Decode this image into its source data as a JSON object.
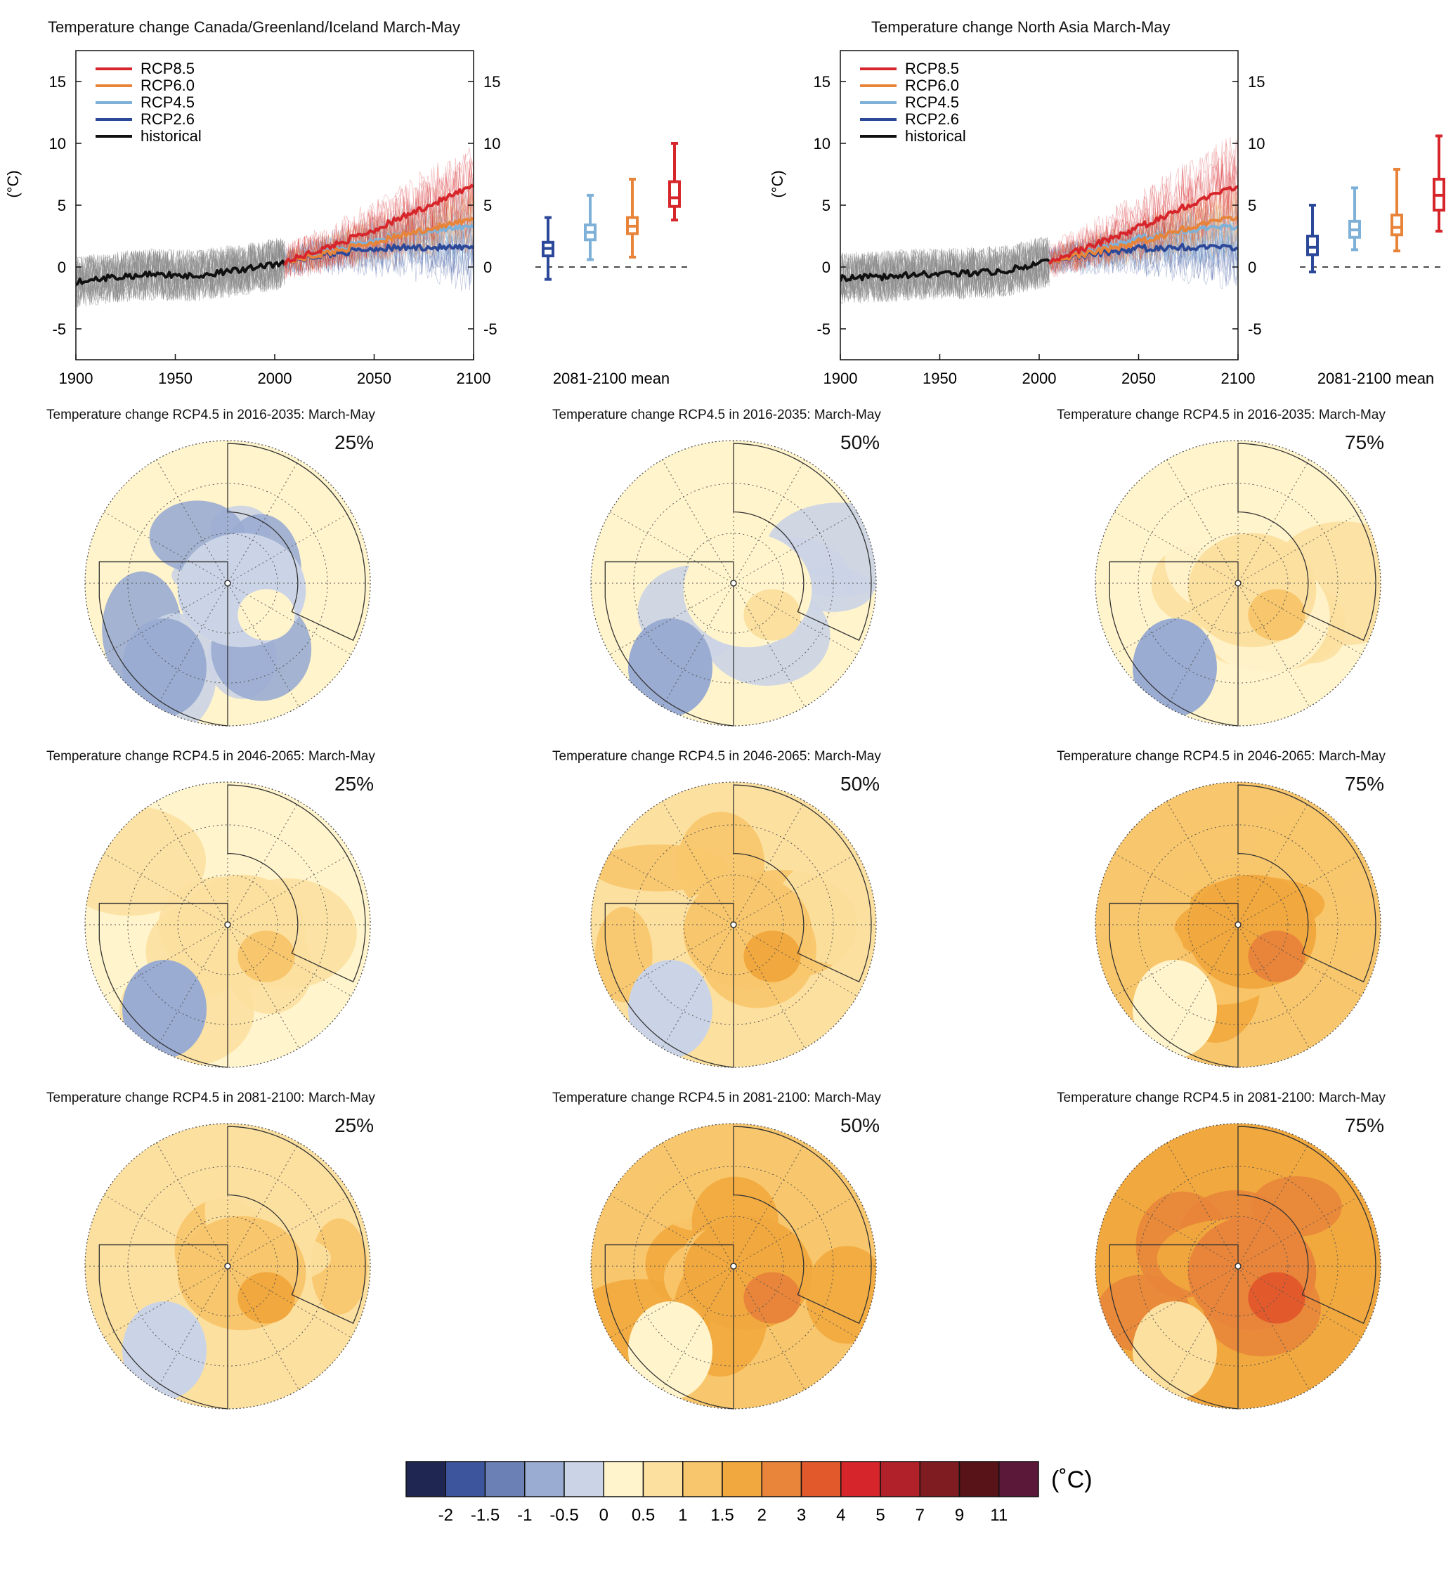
{
  "colors": {
    "rcp85": "#d7262b",
    "rcp60": "#e8843a",
    "rcp45": "#7fb1d8",
    "rcp26": "#2c4898",
    "historical": "#111111",
    "model_gray": "#8a8a8a"
  },
  "chart_data": [
    {
      "type": "line",
      "title": "Temperature change Canada/Greenland/Iceland March-May",
      "ylabel": "(°C)",
      "xlabel": "",
      "x_ticks": [
        "1900",
        "1950",
        "2000",
        "2050",
        "2100"
      ],
      "y_ticks": [
        "-5",
        "0",
        "5",
        "10",
        "15"
      ],
      "xlim": [
        1900,
        2100
      ],
      "ylim": [
        -7.5,
        17.5
      ],
      "legend": {
        "position": "top-left",
        "entries": [
          "RCP8.5",
          "RCP6.0",
          "RCP4.5",
          "RCP2.6",
          "historical"
        ]
      },
      "series": [
        {
          "name": "historical",
          "x": [
            1900,
            1920,
            1940,
            1960,
            1980,
            2000,
            2005
          ],
          "values": [
            -1.2,
            -0.8,
            -0.6,
            -0.7,
            -0.3,
            0.2,
            0.4
          ]
        },
        {
          "name": "RCP2.6",
          "x": [
            2005,
            2025,
            2050,
            2075,
            2100
          ],
          "values": [
            0.4,
            1.0,
            1.5,
            1.6,
            1.5
          ]
        },
        {
          "name": "RCP4.5",
          "x": [
            2005,
            2025,
            2050,
            2075,
            2100
          ],
          "values": [
            0.4,
            1.2,
            2.2,
            2.9,
            3.2
          ]
        },
        {
          "name": "RCP6.0",
          "x": [
            2005,
            2025,
            2050,
            2075,
            2100
          ],
          "values": [
            0.4,
            1.1,
            2.0,
            3.0,
            3.8
          ]
        },
        {
          "name": "RCP8.5",
          "x": [
            2005,
            2025,
            2050,
            2075,
            2100
          ],
          "values": [
            0.4,
            1.5,
            3.0,
            4.8,
            6.5
          ]
        }
      ],
      "boxplots": {
        "label": "2081-2100 mean",
        "items": [
          {
            "name": "RCP2.6",
            "min": -1.0,
            "q1": 0.9,
            "median": 1.5,
            "q3": 2.0,
            "max": 4.0
          },
          {
            "name": "RCP4.5",
            "min": 0.6,
            "q1": 2.2,
            "median": 2.8,
            "q3": 3.4,
            "max": 5.8
          },
          {
            "name": "RCP6.0",
            "min": 0.8,
            "q1": 2.7,
            "median": 3.3,
            "q3": 4.0,
            "max": 7.1
          },
          {
            "name": "RCP8.5",
            "min": 3.8,
            "q1": 4.9,
            "median": 5.6,
            "q3": 6.9,
            "max": 10.0
          }
        ]
      }
    },
    {
      "type": "line",
      "title": "Temperature change North Asia March-May",
      "ylabel": "(°C)",
      "xlabel": "",
      "x_ticks": [
        "1900",
        "1950",
        "2000",
        "2050",
        "2100"
      ],
      "y_ticks": [
        "-5",
        "0",
        "5",
        "10",
        "15"
      ],
      "xlim": [
        1900,
        2100
      ],
      "ylim": [
        -7.5,
        17.5
      ],
      "legend": {
        "position": "top-left",
        "entries": [
          "RCP8.5",
          "RCP6.0",
          "RCP4.5",
          "RCP2.6",
          "historical"
        ]
      },
      "series": [
        {
          "name": "historical",
          "x": [
            1900,
            1920,
            1940,
            1960,
            1980,
            2000,
            2005
          ],
          "values": [
            -0.9,
            -0.8,
            -0.6,
            -0.5,
            -0.4,
            0.3,
            0.5
          ]
        },
        {
          "name": "RCP2.6",
          "x": [
            2005,
            2025,
            2050,
            2075,
            2100
          ],
          "values": [
            0.5,
            1.0,
            1.5,
            1.6,
            1.5
          ]
        },
        {
          "name": "RCP4.5",
          "x": [
            2005,
            2025,
            2050,
            2075,
            2100
          ],
          "values": [
            0.5,
            1.2,
            2.3,
            3.0,
            3.2
          ]
        },
        {
          "name": "RCP6.0",
          "x": [
            2005,
            2025,
            2050,
            2075,
            2100
          ],
          "values": [
            0.5,
            1.1,
            2.0,
            3.2,
            4.0
          ]
        },
        {
          "name": "RCP8.5",
          "x": [
            2005,
            2025,
            2050,
            2075,
            2100
          ],
          "values": [
            0.5,
            1.6,
            3.2,
            5.0,
            6.5
          ]
        }
      ],
      "boxplots": {
        "label": "2081-2100 mean",
        "items": [
          {
            "name": "RCP2.6",
            "min": -0.4,
            "q1": 1.0,
            "median": 1.6,
            "q3": 2.5,
            "max": 5.0
          },
          {
            "name": "RCP4.5",
            "min": 1.4,
            "q1": 2.4,
            "median": 3.0,
            "q3": 3.7,
            "max": 6.4
          },
          {
            "name": "RCP6.0",
            "min": 1.3,
            "q1": 2.6,
            "median": 3.2,
            "q3": 4.2,
            "max": 7.9
          },
          {
            "name": "RCP8.5",
            "min": 2.9,
            "q1": 4.6,
            "median": 5.8,
            "q3": 7.1,
            "max": 10.6
          }
        ]
      }
    },
    {
      "type": "heatmap",
      "map_title_prefix": "Temperature change RCP4.5 in ",
      "map_title_suffix": ": March-May",
      "periods": [
        "2016-2035",
        "2046-2065",
        "2081-2100"
      ],
      "percentiles": [
        "25%",
        "50%",
        "75%"
      ],
      "mean_change_category": [
        [
          4,
          5,
          6
        ],
        [
          6,
          7,
          8
        ],
        [
          7,
          8,
          9
        ]
      ],
      "colorbar": {
        "unit": "(˚C)",
        "tick_labels": [
          "-2",
          "-1.5",
          "-1",
          "-0.5",
          "0",
          "0.5",
          "1",
          "1.5",
          "2",
          "3",
          "4",
          "5",
          "7",
          "9",
          "11"
        ],
        "colors": [
          "#1f2652",
          "#3d559c",
          "#6b81b5",
          "#9aacd2",
          "#cbd4e6",
          "#fff4cc",
          "#fce0a0",
          "#f8c66c",
          "#f1a83e",
          "#e8853a",
          "#e25a2c",
          "#d7262b",
          "#b02129",
          "#7e1c22",
          "#571318",
          "#5c1838"
        ]
      }
    }
  ]
}
